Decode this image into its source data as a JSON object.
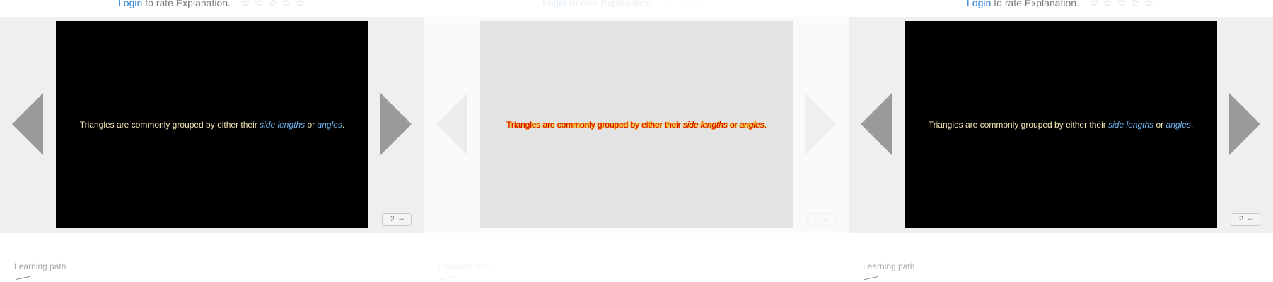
{
  "rating": {
    "login_label": "Login",
    "suffix_text": "to rate Explanation.",
    "stars": [
      "☆",
      "☆",
      "☆",
      "☆",
      "☆"
    ]
  },
  "slide": {
    "text_before": "Triangles are commonly grouped by either their",
    "term1": "side lengths",
    "connector": "or",
    "term2": "angles",
    "end": "."
  },
  "badge": {
    "page_number": "2",
    "icon": "•••"
  },
  "learning_path": {
    "label": "Learning path"
  },
  "colors": {
    "accent_link": "#2a7fd4",
    "slide_text": "#f4e7b5",
    "slide_term": "#6fb3f0"
  }
}
